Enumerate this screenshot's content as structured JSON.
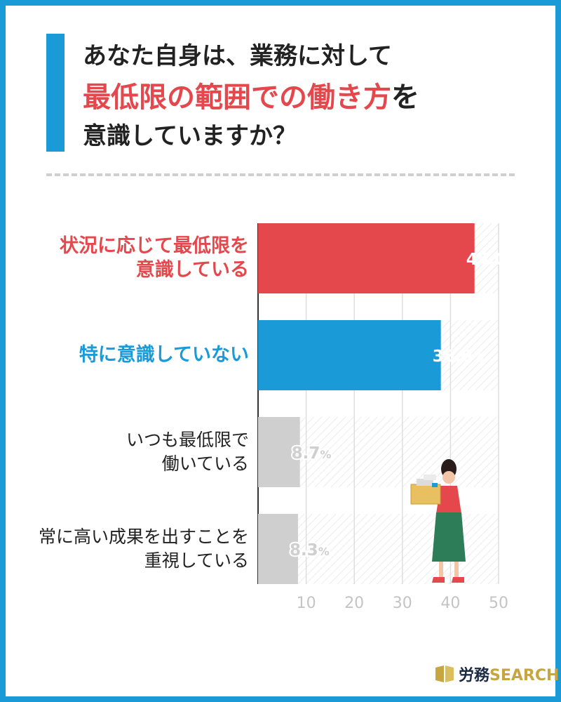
{
  "title": {
    "line1": "あなた自身は、業務に対して",
    "line2_highlight": "最低限の範囲での働き方",
    "line2_rest": "を",
    "line3": "意識していますか？"
  },
  "colors": {
    "frame": "#1a9ad6",
    "highlight": "#e4484d",
    "blue": "#1a9ad6",
    "gray": "#cfcfcf"
  },
  "chart_data": {
    "type": "bar",
    "orientation": "horizontal",
    "categories": [
      [
        "状況に応じて最低限を",
        "意識している"
      ],
      [
        "特に意識していない"
      ],
      [
        "いつも最低限で",
        "働いている"
      ],
      [
        "常に高い成果を出すことを",
        "重視している"
      ]
    ],
    "values": [
      45.0,
      38.0,
      8.7,
      8.3
    ],
    "value_labels": [
      "45.0%",
      "38.0%",
      "8.7%",
      "8.3%"
    ],
    "bar_colors": [
      "#e4484d",
      "#1a9ad6",
      "#cfcfcf",
      "#cfcfcf"
    ],
    "label_colors": [
      "#e4484d",
      "#1a9ad6",
      "#222222",
      "#222222"
    ],
    "x_ticks": [
      10,
      20,
      30,
      40,
      50
    ],
    "xlim": [
      0,
      50
    ],
    "grid": true
  },
  "logo": {
    "name_jp": "労務",
    "name_en": "SEARCH"
  }
}
